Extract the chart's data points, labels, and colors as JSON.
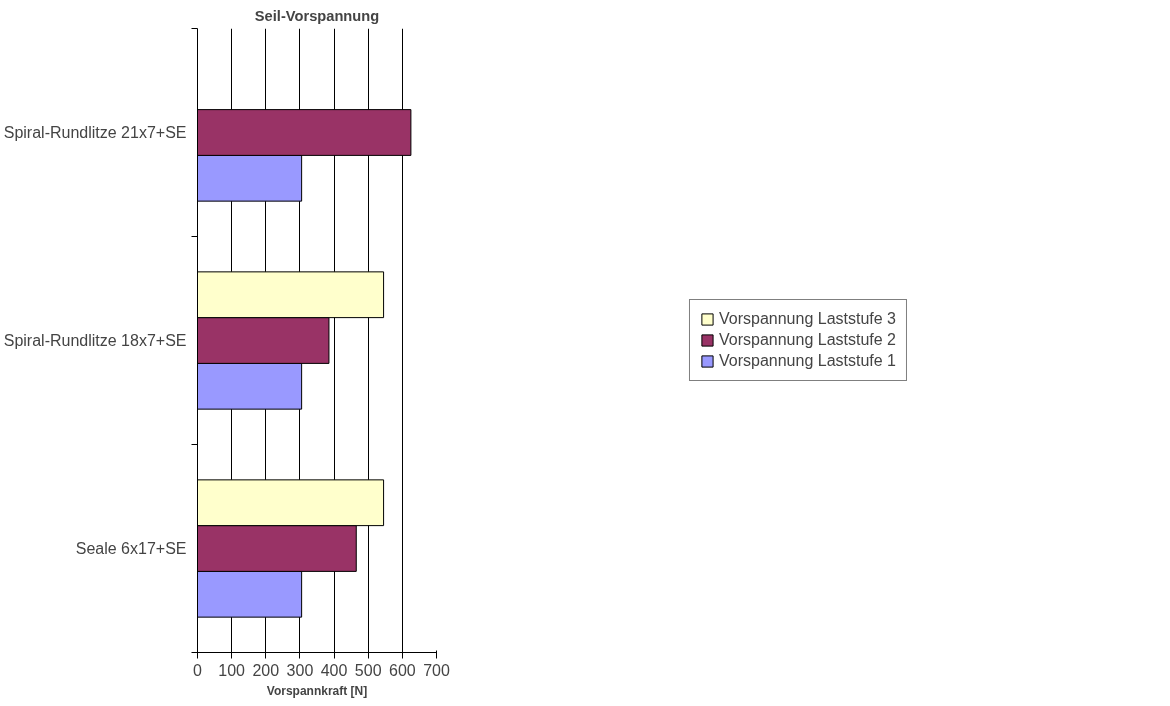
{
  "chart_data": {
    "type": "bar",
    "orientation": "horizontal",
    "title": "Seil-Vorspannung",
    "xlabel": "Vorspannkraft [N]",
    "categories": [
      "Spiral-Rundlitze 21x7+SE",
      "Spiral-Rundlitze 18x7+SE",
      "Seale 6x17+SE"
    ],
    "series": [
      {
        "name": "Vorspannung Laststufe 1",
        "color": "#9999ff",
        "values": [
          305,
          305,
          305
        ]
      },
      {
        "name": "Vorspannung Laststufe 2",
        "color": "#993366",
        "values": [
          625,
          385,
          465
        ]
      },
      {
        "name": "Vorspannung Laststufe 3",
        "color": "#ffffcc",
        "values": [
          null,
          545,
          545
        ]
      }
    ],
    "xlim": [
      0,
      700
    ],
    "xticks": [
      0,
      100,
      200,
      300,
      400,
      500,
      600,
      700
    ],
    "grid": "x",
    "legend": "right"
  }
}
